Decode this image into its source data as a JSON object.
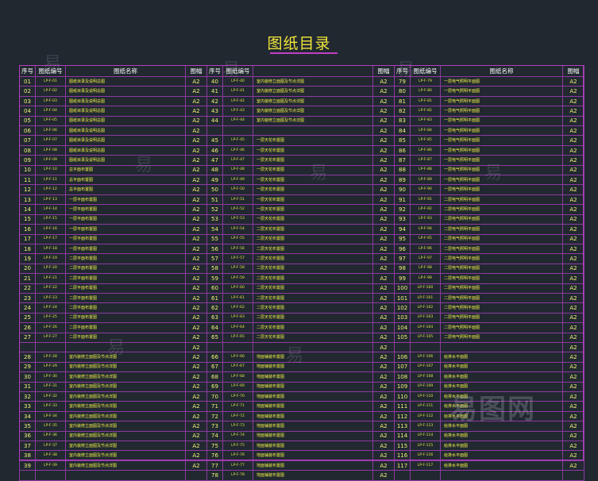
{
  "title": "图纸目录",
  "headers": [
    {
      "no": "序号",
      "code": "图纸编号",
      "name": "图纸名称",
      "size": "图幅"
    },
    {
      "no": "序号",
      "code": "图纸编号",
      "name": "",
      "size": "图幅"
    },
    {
      "no": "序号",
      "code": "图纸编号",
      "name": "图纸名称",
      "size": "图幅"
    }
  ],
  "columns": [
    [
      {
        "no": "01",
        "code": "LP-F-01",
        "name": "图纸目录及说明总图",
        "size": "A2"
      },
      {
        "no": "02",
        "code": "LP-F-02",
        "name": "图纸目录及说明总图",
        "size": "A2"
      },
      {
        "no": "03",
        "code": "LP-F-03",
        "name": "图纸目录及说明总图",
        "size": "A2"
      },
      {
        "no": "04",
        "code": "LP-F-04",
        "name": "图纸目录及说明总图",
        "size": "A2"
      },
      {
        "no": "05",
        "code": "LP-F-05",
        "name": "图纸目录及说明总图",
        "size": "A2"
      },
      {
        "no": "06",
        "code": "LP-F-06",
        "name": "图纸目录及说明总图",
        "size": "A2"
      },
      {
        "no": "07",
        "code": "LP-F-07",
        "name": "图纸目录及说明总图",
        "size": "A2"
      },
      {
        "no": "08",
        "code": "LP-F-08",
        "name": "图纸目录及说明总图",
        "size": "A2"
      },
      {
        "no": "09",
        "code": "LP-F-09",
        "name": "图纸目录及说明总图",
        "size": "A2"
      },
      {
        "no": "10",
        "code": "LP-F-10",
        "name": "总平面布置图",
        "size": "A2"
      },
      {
        "no": "11",
        "code": "LP-F-11",
        "name": "总平面布置图",
        "size": "A2"
      },
      {
        "no": "12",
        "code": "LP-F-12",
        "name": "总平面布置图",
        "size": "A2"
      },
      {
        "no": "13",
        "code": "LP-F-13",
        "name": "一层平面布置图",
        "size": "A2"
      },
      {
        "no": "14",
        "code": "LP-F-14",
        "name": "一层平面布置图",
        "size": "A2"
      },
      {
        "no": "15",
        "code": "LP-F-15",
        "name": "一层平面布置图",
        "size": "A2"
      },
      {
        "no": "16",
        "code": "LP-F-16",
        "name": "一层平面布置图",
        "size": "A2"
      },
      {
        "no": "17",
        "code": "LP-F-17",
        "name": "一层平面布置图",
        "size": "A2"
      },
      {
        "no": "18",
        "code": "LP-F-18",
        "name": "一层平面布置图",
        "size": "A2"
      },
      {
        "no": "19",
        "code": "LP-F-19",
        "name": "二层平面布置图",
        "size": "A2"
      },
      {
        "no": "20",
        "code": "LP-F-20",
        "name": "二层平面布置图",
        "size": "A2"
      },
      {
        "no": "21",
        "code": "LP-F-21",
        "name": "二层平面布置图",
        "size": "A2"
      },
      {
        "no": "22",
        "code": "LP-F-22",
        "name": "二层平面布置图",
        "size": "A2"
      },
      {
        "no": "23",
        "code": "LP-F-23",
        "name": "二层平面布置图",
        "size": "A2"
      },
      {
        "no": "24",
        "code": "LP-F-24",
        "name": "二层平面布置图",
        "size": "A2"
      },
      {
        "no": "25",
        "code": "LP-F-25",
        "name": "二层平面布置图",
        "size": "A2"
      },
      {
        "no": "26",
        "code": "LP-F-26",
        "name": "二层平面布置图",
        "size": "A2"
      },
      {
        "no": "27",
        "code": "LP-F-27",
        "name": "二层平面布置图",
        "size": "A2"
      },
      {
        "no": "",
        "code": "",
        "name": "",
        "size": "A2"
      },
      {
        "no": "28",
        "code": "LP-F-28",
        "name": "室内装修立面图及节点详图",
        "size": "A2"
      },
      {
        "no": "29",
        "code": "LP-F-29",
        "name": "室内装修立面图及节点详图",
        "size": "A2"
      },
      {
        "no": "30",
        "code": "LP-F-30",
        "name": "室内装修立面图及节点详图",
        "size": "A2"
      },
      {
        "no": "31",
        "code": "LP-F-31",
        "name": "室内装修立面图及节点详图",
        "size": "A2"
      },
      {
        "no": "32",
        "code": "LP-F-32",
        "name": "室内装修立面图及节点详图",
        "size": "A2"
      },
      {
        "no": "33",
        "code": "LP-F-33",
        "name": "室内装修立面图及节点详图",
        "size": "A2"
      },
      {
        "no": "34",
        "code": "LP-F-34",
        "name": "室内装修立面图及节点详图",
        "size": "A2"
      },
      {
        "no": "35",
        "code": "LP-F-35",
        "name": "室内装修立面图及节点详图",
        "size": "A2"
      },
      {
        "no": "36",
        "code": "LP-F-36",
        "name": "室内装修立面图及节点详图",
        "size": "A2"
      },
      {
        "no": "37",
        "code": "LP-F-37",
        "name": "室内装修立面图及节点详图",
        "size": "A2"
      },
      {
        "no": "38",
        "code": "LP-F-38",
        "name": "室内装修立面图及节点详图",
        "size": "A2"
      },
      {
        "no": "39",
        "code": "LP-F-39",
        "name": "室内装修立面图及节点详图",
        "size": "A2"
      }
    ],
    [
      {
        "no": "40",
        "code": "LP-F-40",
        "name": "室内装修立面图及节点详图",
        "size": "A2"
      },
      {
        "no": "41",
        "code": "LP-F-41",
        "name": "室内装修立面图及节点详图",
        "size": "A2"
      },
      {
        "no": "42",
        "code": "LP-F-42",
        "name": "室内装修立面图及节点详图",
        "size": "A2"
      },
      {
        "no": "43",
        "code": "LP-F-43",
        "name": "室内装修立面图及节点详图",
        "size": "A2"
      },
      {
        "no": "44",
        "code": "LP-F-44",
        "name": "室内装修立面图及节点详图",
        "size": "A2"
      },
      {
        "no": "",
        "code": "",
        "name": "",
        "size": "A2"
      },
      {
        "no": "45",
        "code": "LP-F-45",
        "name": "一层天花布置图",
        "size": "A2"
      },
      {
        "no": "46",
        "code": "LP-F-46",
        "name": "一层天花布置图",
        "size": "A2"
      },
      {
        "no": "47",
        "code": "LP-F-47",
        "name": "一层天花布置图",
        "size": "A2"
      },
      {
        "no": "48",
        "code": "LP-F-48",
        "name": "一层天花布置图",
        "size": "A2"
      },
      {
        "no": "49",
        "code": "LP-F-49",
        "name": "一层天花布置图",
        "size": "A2"
      },
      {
        "no": "50",
        "code": "LP-F-50",
        "name": "一层天花布置图",
        "size": "A2"
      },
      {
        "no": "51",
        "code": "LP-F-51",
        "name": "一层天花布置图",
        "size": "A2"
      },
      {
        "no": "52",
        "code": "LP-F-52",
        "name": "一层天花布置图",
        "size": "A2"
      },
      {
        "no": "53",
        "code": "LP-F-53",
        "name": "一层天花布置图",
        "size": "A2"
      },
      {
        "no": "54",
        "code": "LP-F-54",
        "name": "二层天花布置图",
        "size": "A2"
      },
      {
        "no": "55",
        "code": "LP-F-55",
        "name": "二层天花布置图",
        "size": "A2"
      },
      {
        "no": "56",
        "code": "LP-F-56",
        "name": "二层天花布置图",
        "size": "A2"
      },
      {
        "no": "57",
        "code": "LP-F-57",
        "name": "二层天花布置图",
        "size": "A2"
      },
      {
        "no": "58",
        "code": "LP-F-58",
        "name": "二层天花布置图",
        "size": "A2"
      },
      {
        "no": "59",
        "code": "LP-F-59",
        "name": "二层天花布置图",
        "size": "A2"
      },
      {
        "no": "60",
        "code": "LP-F-60",
        "name": "二层天花布置图",
        "size": "A2"
      },
      {
        "no": "61",
        "code": "LP-F-61",
        "name": "二层天花布置图",
        "size": "A2"
      },
      {
        "no": "62",
        "code": "LP-F-62",
        "name": "二层天花布置图",
        "size": "A2"
      },
      {
        "no": "63",
        "code": "LP-F-63",
        "name": "二层天花布置图",
        "size": "A2"
      },
      {
        "no": "64",
        "code": "LP-F-64",
        "name": "二层天花布置图",
        "size": "A2"
      },
      {
        "no": "65",
        "code": "LP-F-65",
        "name": "二层天花布置图",
        "size": "A2"
      },
      {
        "no": "",
        "code": "",
        "name": "",
        "size": "A2"
      },
      {
        "no": "66",
        "code": "LP-F-66",
        "name": "地面铺装布置图",
        "size": "A2"
      },
      {
        "no": "67",
        "code": "LP-F-67",
        "name": "地面铺装布置图",
        "size": "A2"
      },
      {
        "no": "68",
        "code": "LP-F-68",
        "name": "地面铺装布置图",
        "size": "A2"
      },
      {
        "no": "69",
        "code": "LP-F-69",
        "name": "地面铺装布置图",
        "size": "A2"
      },
      {
        "no": "70",
        "code": "LP-F-70",
        "name": "地面铺装布置图",
        "size": "A2"
      },
      {
        "no": "71",
        "code": "LP-F-71",
        "name": "地面铺装布置图",
        "size": "A2"
      },
      {
        "no": "72",
        "code": "LP-F-72",
        "name": "地面铺装布置图",
        "size": "A2"
      },
      {
        "no": "73",
        "code": "LP-F-73",
        "name": "地面铺装布置图",
        "size": "A2"
      },
      {
        "no": "74",
        "code": "LP-F-74",
        "name": "地面铺装布置图",
        "size": "A2"
      },
      {
        "no": "75",
        "code": "LP-F-75",
        "name": "地面铺装布置图",
        "size": "A2"
      },
      {
        "no": "76",
        "code": "LP-F-76",
        "name": "地面铺装布置图",
        "size": "A2"
      },
      {
        "no": "77",
        "code": "LP-F-77",
        "name": "地面铺装布置图",
        "size": "A2"
      },
      {
        "no": "78",
        "code": "LP-F-78",
        "name": "地面铺装布置图",
        "size": "A2"
      }
    ],
    [
      {
        "no": "79",
        "code": "LP-F-79",
        "name": "一层电气照明平面图",
        "size": "A2"
      },
      {
        "no": "80",
        "code": "LP-F-80",
        "name": "一层电气照明平面图",
        "size": "A2"
      },
      {
        "no": "81",
        "code": "LP-F-81",
        "name": "一层电气照明平面图",
        "size": "A2"
      },
      {
        "no": "82",
        "code": "LP-F-82",
        "name": "一层电气照明平面图",
        "size": "A2"
      },
      {
        "no": "83",
        "code": "LP-F-83",
        "name": "一层电气照明平面图",
        "size": "A2"
      },
      {
        "no": "84",
        "code": "LP-F-84",
        "name": "一层电气照明平面图",
        "size": "A2"
      },
      {
        "no": "85",
        "code": "LP-F-85",
        "name": "一层电气照明平面图",
        "size": "A2"
      },
      {
        "no": "86",
        "code": "LP-F-86",
        "name": "一层电气照明平面图",
        "size": "A2"
      },
      {
        "no": "87",
        "code": "LP-F-87",
        "name": "一层电气照明平面图",
        "size": "A2"
      },
      {
        "no": "88",
        "code": "LP-F-88",
        "name": "一层电气照明平面图",
        "size": "A2"
      },
      {
        "no": "89",
        "code": "LP-F-89",
        "name": "一层电气照明平面图",
        "size": "A2"
      },
      {
        "no": "90",
        "code": "LP-F-90",
        "name": "一层电气照明平面图",
        "size": "A2"
      },
      {
        "no": "91",
        "code": "LP-F-91",
        "name": "二层电气照明平面图",
        "size": "A2"
      },
      {
        "no": "92",
        "code": "LP-F-92",
        "name": "二层电气照明平面图",
        "size": "A2"
      },
      {
        "no": "93",
        "code": "LP-F-93",
        "name": "二层电气照明平面图",
        "size": "A2"
      },
      {
        "no": "94",
        "code": "LP-F-94",
        "name": "二层电气照明平面图",
        "size": "A2"
      },
      {
        "no": "95",
        "code": "LP-F-95",
        "name": "二层电气照明平面图",
        "size": "A2"
      },
      {
        "no": "96",
        "code": "LP-F-96",
        "name": "二层电气照明平面图",
        "size": "A2"
      },
      {
        "no": "97",
        "code": "LP-F-97",
        "name": "二层电气照明平面图",
        "size": "A2"
      },
      {
        "no": "98",
        "code": "LP-F-98",
        "name": "二层电气照明平面图",
        "size": "A2"
      },
      {
        "no": "99",
        "code": "LP-F-99",
        "name": "二层电气照明平面图",
        "size": "A2"
      },
      {
        "no": "100",
        "code": "LP-F-100",
        "name": "二层电气照明平面图",
        "size": "A2"
      },
      {
        "no": "101",
        "code": "LP-F-101",
        "name": "二层电气照明平面图",
        "size": "A2"
      },
      {
        "no": "102",
        "code": "LP-F-102",
        "name": "二层电气照明平面图",
        "size": "A2"
      },
      {
        "no": "103",
        "code": "LP-F-103",
        "name": "二层电气照明平面图",
        "size": "A2"
      },
      {
        "no": "104",
        "code": "LP-F-104",
        "name": "二层电气照明平面图",
        "size": "A2"
      },
      {
        "no": "105",
        "code": "LP-F-105",
        "name": "二层电气照明平面图",
        "size": "A2"
      },
      {
        "no": "",
        "code": "",
        "name": "",
        "size": "A2"
      },
      {
        "no": "106",
        "code": "LP-F-106",
        "name": "给排水平面图",
        "size": "A2"
      },
      {
        "no": "107",
        "code": "LP-F-107",
        "name": "给排水平面图",
        "size": "A2"
      },
      {
        "no": "108",
        "code": "LP-F-108",
        "name": "给排水平面图",
        "size": "A2"
      },
      {
        "no": "109",
        "code": "LP-F-109",
        "name": "给排水平面图",
        "size": "A2"
      },
      {
        "no": "110",
        "code": "LP-F-110",
        "name": "给排水平面图",
        "size": "A2"
      },
      {
        "no": "111",
        "code": "LP-F-111",
        "name": "给排水平面图",
        "size": "A2"
      },
      {
        "no": "112",
        "code": "LP-F-112",
        "name": "给排水平面图",
        "size": "A2"
      },
      {
        "no": "113",
        "code": "LP-F-113",
        "name": "给排水平面图",
        "size": "A2"
      },
      {
        "no": "114",
        "code": "LP-F-114",
        "name": "给排水平面图",
        "size": "A2"
      },
      {
        "no": "115",
        "code": "LP-F-115",
        "name": "给排水平面图",
        "size": "A2"
      },
      {
        "no": "116",
        "code": "LP-F-116",
        "name": "给排水平面图",
        "size": "A2"
      },
      {
        "no": "117",
        "code": "LP-F-117",
        "name": "给排水平面图",
        "size": "A2"
      }
    ]
  ],
  "watermarks": [
    "易",
    "易",
    "易",
    "易",
    "易",
    "易",
    "易",
    "易"
  ],
  "brand": "易图网"
}
